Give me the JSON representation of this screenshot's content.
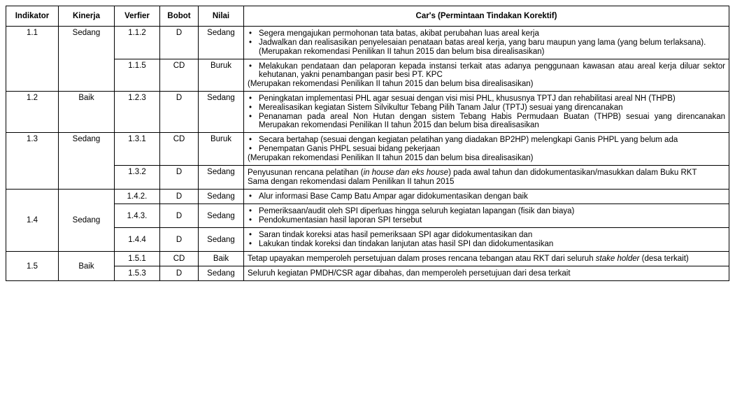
{
  "headers": {
    "c1": "Indikator",
    "c2": "Kinerja",
    "c3": "Verfier",
    "c4": "Bobot",
    "c5": "Nilai",
    "c6": "Car's (Permintaan Tindakan Korektif)"
  },
  "rows": {
    "r1_1": {
      "ind": "1.1",
      "kin": "Sedang"
    },
    "r1_1a": {
      "ver": "1.1.2",
      "bob": "D",
      "nil": "Sedang",
      "b1": "Segera mengajukan permohonan tata batas, akibat perubahan luas areal kerja",
      "b2": "Jadwalkan dan realisasikan penyelesaian penataan batas areal kerja, yang baru maupun yang lama (yang belum terlaksana).",
      "n1": "(Merupakan rekomendasi Penilikan II tahun 2015 dan belum bisa direalisasikan)"
    },
    "r1_1b": {
      "ver": "1.1.5",
      "bob": "CD",
      "nil": "Buruk",
      "b1": "Melakukan pendataan dan pelaporan kepada instansi terkait atas adanya penggunaan kawasan atau areal kerja diluar sektor kehutanan, yakni penambangan pasir besi PT. KPC",
      "n1": "(Merupakan rekomendasi Penilikan II tahun 2015 dan belum bisa direalisasikan)"
    },
    "r1_2": {
      "ind": "1.2",
      "kin": "Baik",
      "ver": "1.2.3",
      "bob": "D",
      "nil": "Sedang",
      "b1": "Peningkatan implementasi PHL agar sesuai dengan visi misi PHL, khususnya TPTJ dan rehabilitasi areal NH (THPB)",
      "b2": "Merealisasikan kegiatan Sistem Silvikultur Tebang Pilih Tanam Jalur  (TPTJ) sesuai yang direncanakan",
      "b3": "Penanaman pada areal Non Hutan dengan sistem Tebang Habis Permudaan Buatan (THPB) sesuai yang direncanakan Merupakan rekomendasi Penilikan II tahun 2015 dan belum bisa direalisasikan"
    },
    "r1_3": {
      "ind": "1.3",
      "kin": "Sedang"
    },
    "r1_3a": {
      "ver": "1.3.1",
      "bob": "CD",
      "nil": "Buruk",
      "b1": "Secara bertahap (sesuai dengan kegiatan pelatihan yang diadakan BP2HP) melengkapi Ganis PHPL yang belum ada",
      "b2": "Penempatan Ganis PHPL sesuai bidang pekerjaan",
      "n1": "(Merupakan rekomendasi Penilikan II tahun 2015 dan belum bisa direalisasikan)"
    },
    "r1_3b": {
      "ver": "1.3.2",
      "bob": "D",
      "nil": "Sedang",
      "p1a": "Penyusunan rencana pelatihan (",
      "p1i": "in house dan eks house",
      "p1b": ") pada awal tahun dan didokumentasikan/masukkan dalam Buku RKT",
      "p2": "Sama dengan rekomendasi dalam Penilikan II tahun 2015"
    },
    "r1_4": {
      "ind": "1.4",
      "kin": "Sedang"
    },
    "r1_4a": {
      "ver": "1.4.2.",
      "bob": "D",
      "nil": "Sedang",
      "b1": " Alur informasi Base Camp Batu Ampar agar didokumentasikan dengan baik"
    },
    "r1_4b": {
      "ver": "1.4.3.",
      "bob": "D",
      "nil": "Sedang",
      "b1": "Pemeriksaan/audit oleh SPI diperluas hingga seluruh kegiatan lapangan (fisik dan biaya)",
      "b2": "Pendokumentasian hasil laporan SPI tersebut"
    },
    "r1_4c": {
      "ver": "1.4.4",
      "bob": "D",
      "nil": "Sedang",
      "b1": "Saran tindak koreksi atas hasil pemeriksaan SPI agar didokumentasikan dan",
      "b2": "Lakukan tindak koreksi dan tindakan lanjutan atas hasil SPI dan didokumentasikan"
    },
    "r1_5": {
      "ind": "1.5",
      "kin": "Baik"
    },
    "r1_5a": {
      "ver": "1.5.1",
      "bob": "CD",
      "nil": "Baik",
      "p1a": "Tetap upayakan memperoleh persetujuan dalam proses rencana tebangan atau RKT dari seluruh ",
      "p1i": "stake holder",
      "p1b": " (desa terkait)"
    },
    "r1_5b": {
      "ver": "1.5.3",
      "bob": "D",
      "nil": "Sedang",
      "p1": "Seluruh kegiatan PMDH/CSR agar dibahas, dan memperoleh persetujuan dari desa terkait"
    }
  }
}
